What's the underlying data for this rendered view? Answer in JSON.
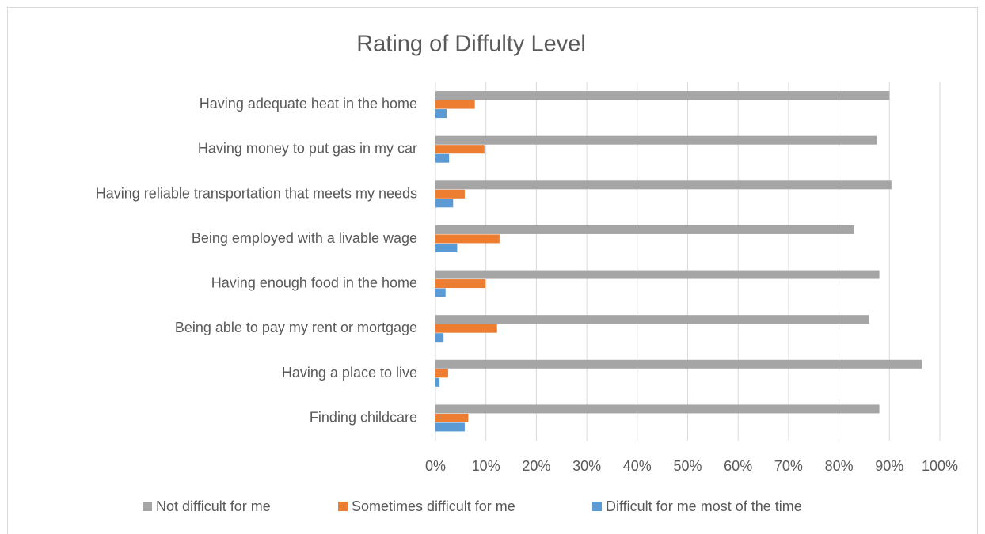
{
  "chart_data": {
    "type": "bar",
    "orientation": "horizontal",
    "title": "Rating of Diffulty Level",
    "categories": [
      "Having adequate heat in the home",
      "Having money to put gas in my car",
      "Having reliable transportation that meets my needs",
      "Being employed with a livable wage",
      "Having enough food in the home",
      "Being able to pay my rent or mortgage",
      "Having a place to live",
      "Finding childcare"
    ],
    "series": [
      {
        "name": "Not difficult for me",
        "color": "#a5a5a5",
        "values": [
          90,
          87.5,
          90.4,
          83,
          88,
          86,
          96.4,
          88
        ]
      },
      {
        "name": "Sometimes difficult for me",
        "color": "#ed7d31",
        "values": [
          7.8,
          9.7,
          5.8,
          12.7,
          9.9,
          12.2,
          2.5,
          6.5
        ]
      },
      {
        "name": "Difficult for me most of the time",
        "color": "#5b9bd5",
        "values": [
          2.2,
          2.7,
          3.5,
          4.3,
          2,
          1.6,
          0.8,
          5.8
        ]
      }
    ],
    "xlim": [
      0,
      100
    ],
    "xticks": [
      {
        "value": 0,
        "label": "0%"
      },
      {
        "value": 10,
        "label": "10%"
      },
      {
        "value": 20,
        "label": "20%"
      },
      {
        "value": 30,
        "label": "30%"
      },
      {
        "value": 40,
        "label": "40%"
      },
      {
        "value": 50,
        "label": "50%"
      },
      {
        "value": 60,
        "label": "60%"
      },
      {
        "value": 70,
        "label": "70%"
      },
      {
        "value": 80,
        "label": "80%"
      },
      {
        "value": 90,
        "label": "90%"
      },
      {
        "value": 100,
        "label": "100%"
      }
    ],
    "grid": true,
    "legend": "bottom"
  }
}
